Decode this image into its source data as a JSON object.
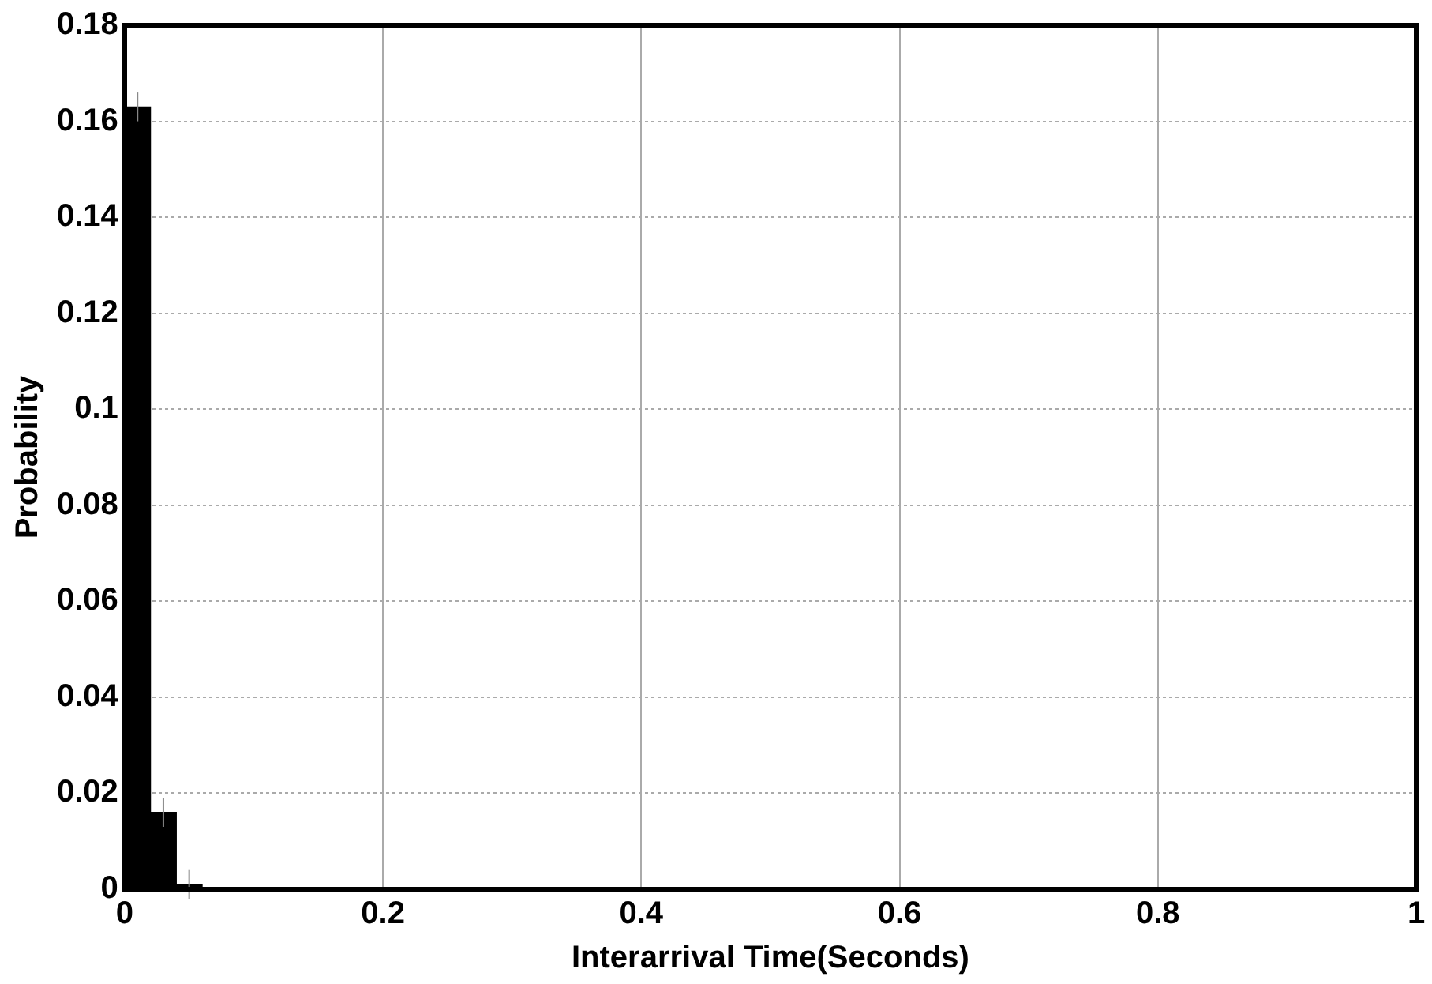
{
  "chart_data": {
    "type": "histogram",
    "xlabel": "Interarrival Time(Seconds)",
    "ylabel": "Probability",
    "bins": [
      0,
      0.02,
      0.04,
      0.06,
      0.08,
      0.1,
      0.12,
      0.14,
      0.16,
      0.18,
      0.2,
      0.22,
      0.24,
      0.26,
      0.28,
      0.3,
      0.32,
      0.34,
      0.36,
      0.38,
      0.4,
      0.42,
      0.44,
      0.46,
      0.48,
      0.5,
      0.52,
      0.54,
      0.56,
      0.58,
      0.6,
      0.62,
      0.64,
      0.66,
      0.68,
      0.7,
      0.72,
      0.74,
      0.76,
      0.78,
      0.8,
      0.82,
      0.84,
      0.86,
      0.88,
      0.9,
      0.92,
      0.94,
      0.96,
      0.98,
      1
    ],
    "values": [
      0.163,
      0.016,
      0.001,
      0,
      0,
      0,
      0,
      0,
      0,
      0,
      0,
      0,
      0,
      0,
      0,
      0,
      0,
      0,
      0,
      0,
      0,
      0,
      0,
      0,
      0,
      0,
      0,
      0,
      0,
      0,
      0,
      0,
      0,
      0,
      0,
      0,
      0,
      0,
      0,
      0,
      0,
      0,
      0,
      0,
      0,
      0,
      0,
      0,
      0,
      0
    ],
    "errors": [
      0.003,
      0.003,
      0.003,
      null,
      null,
      null,
      null,
      null,
      null,
      null,
      null,
      null,
      null,
      null,
      null,
      null,
      null,
      null,
      null,
      null,
      null,
      null,
      null,
      null,
      null,
      null,
      null,
      null,
      null,
      null,
      null,
      null,
      null,
      null,
      null,
      null,
      null,
      null,
      null,
      null,
      null,
      null,
      null,
      null,
      null,
      null,
      null,
      null,
      null,
      null
    ],
    "color": "#000000",
    "xlim": [
      0,
      1
    ],
    "xticks": [
      0,
      0.2,
      0.4,
      0.6,
      0.8,
      1
    ],
    "ylim": [
      0,
      0.18
    ],
    "yticks": [
      0,
      0.02,
      0.04,
      0.06,
      0.08,
      0.1,
      0.12,
      0.14,
      0.16,
      0.18
    ],
    "grid": true,
    "legend": false
  }
}
